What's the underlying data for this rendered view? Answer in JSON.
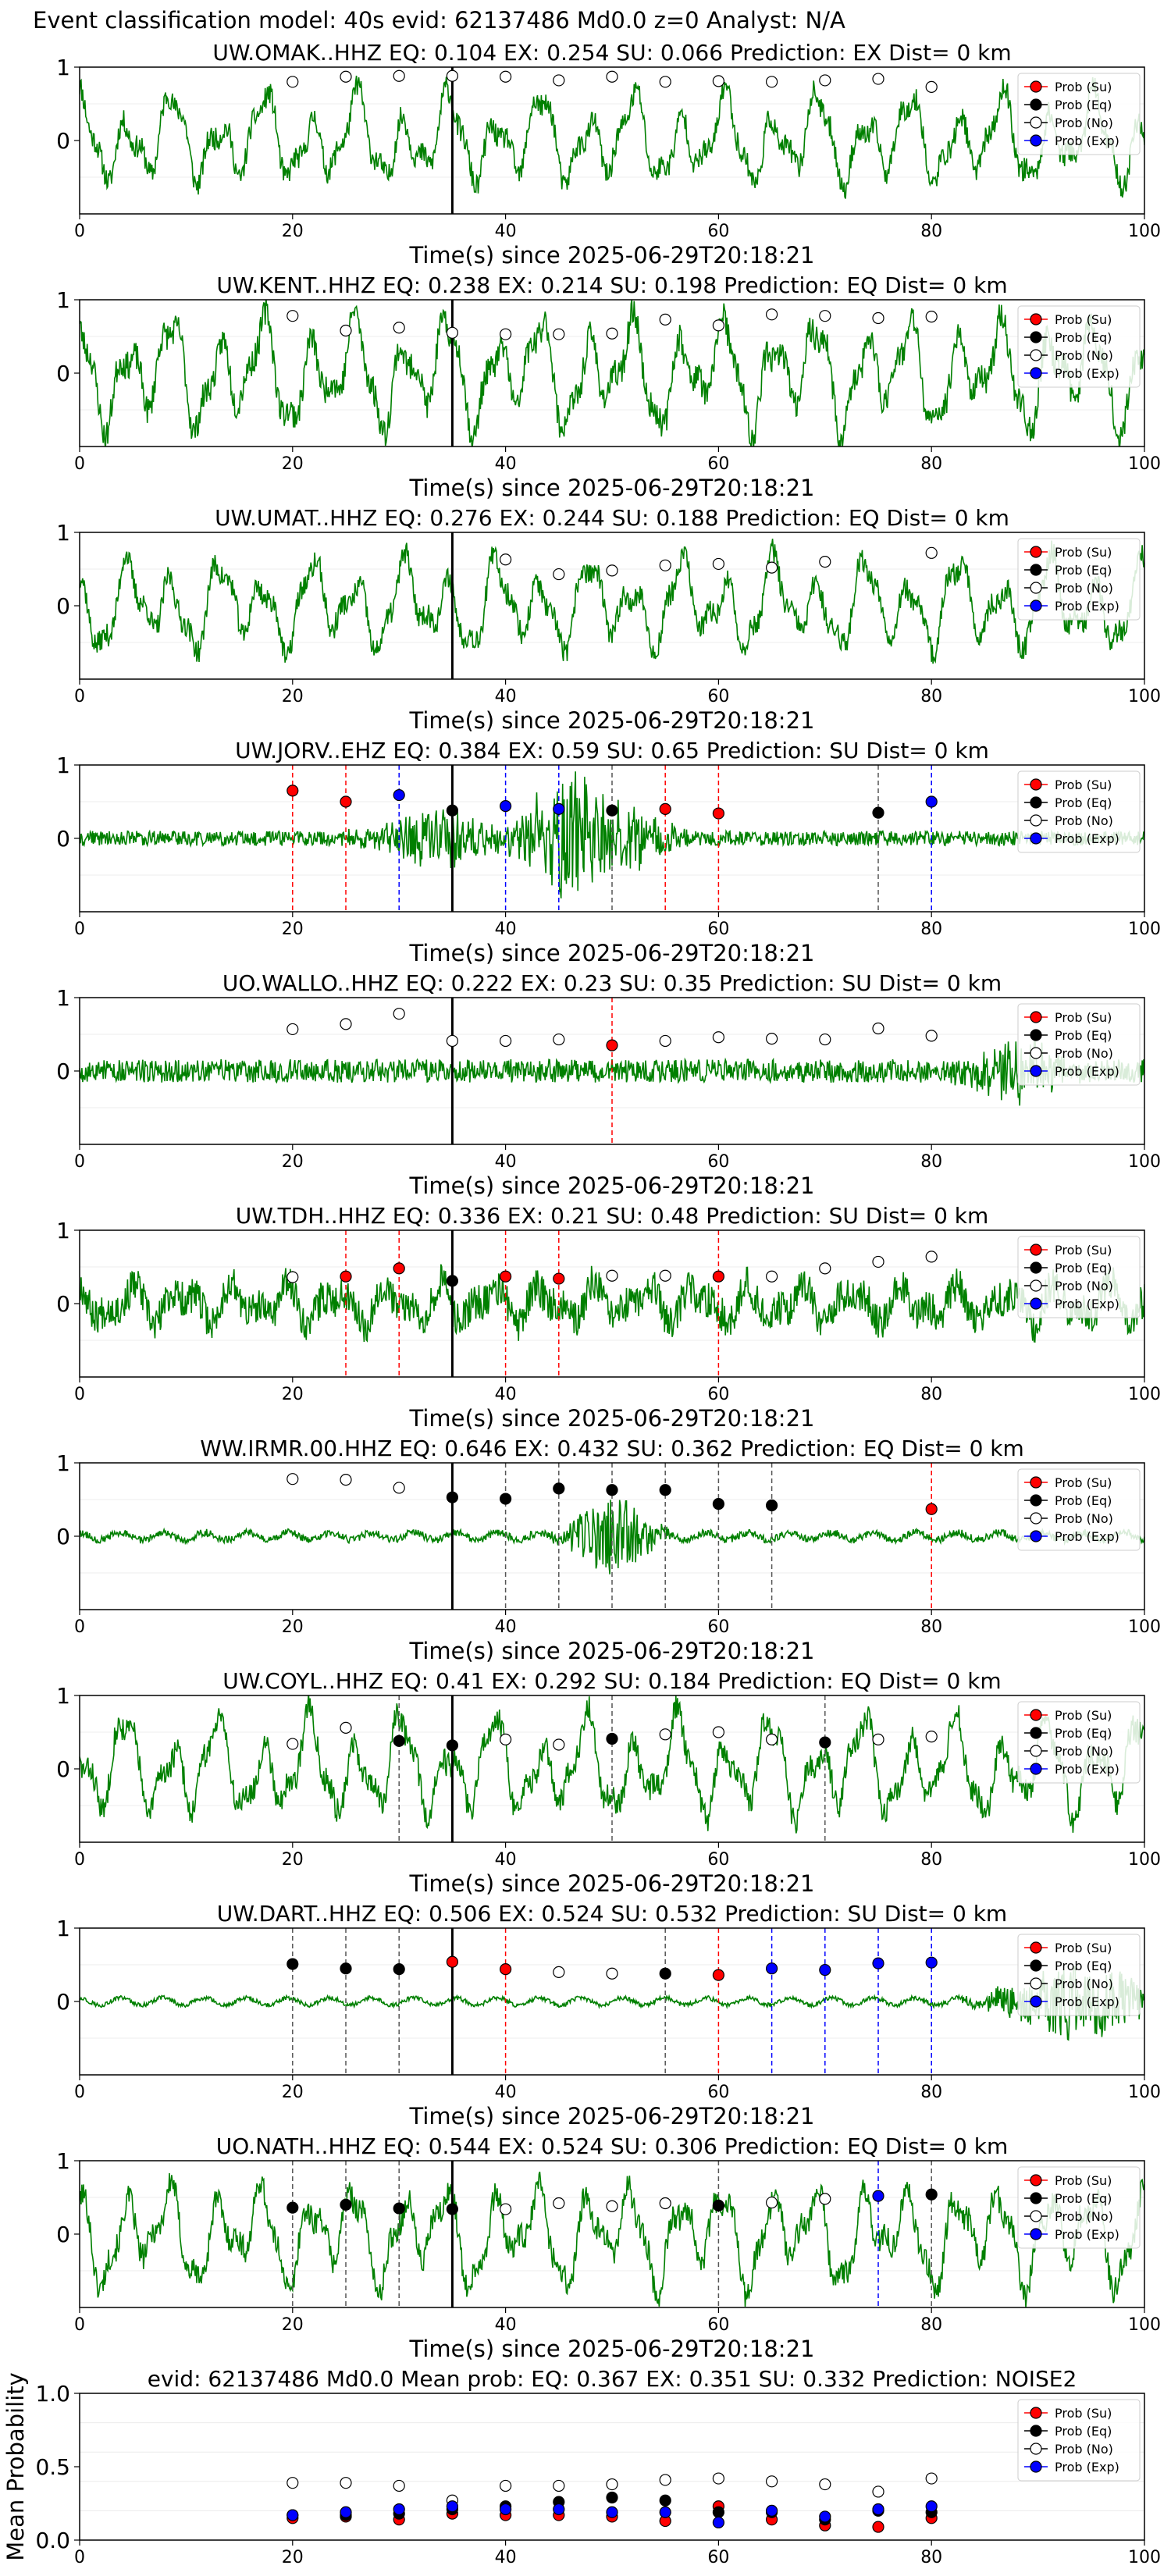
{
  "figure": {
    "suptitle": "Event classification model: 40s evid: 62137486 Md0.0 z=0 Analyst: N/A",
    "xlabel": "Time(s) since 2025-06-29T20:18:21",
    "legend": [
      "Prob (Su)",
      "Prob (Eq)",
      "Prob (No)",
      "Prob (Exp)"
    ]
  },
  "colors": {
    "trace": "#008000",
    "su": "#ff0000",
    "eq": "#000000",
    "no": "#ffffff",
    "exp": "#0000ff",
    "marker": "#000000"
  },
  "chart_data": [
    {
      "type": "line",
      "title": "UW.OMAK..HHZ   EQ: 0.104  EX: 0.254  SU: 0.066   Prediction: EX    Dist= 0 km",
      "xlim": [
        0,
        100
      ],
      "ylim": [
        -1,
        1
      ],
      "xticks": [
        0,
        20,
        40,
        60,
        80,
        100
      ],
      "yticks": [
        0,
        1
      ],
      "xlabel": "Time(s) since 2025-06-29T20:18:21",
      "marker_x": 35,
      "points": [
        {
          "x": 20,
          "y": 0.8,
          "cls": "no"
        },
        {
          "x": 25,
          "y": 0.87,
          "cls": "no"
        },
        {
          "x": 30,
          "y": 0.88,
          "cls": "no"
        },
        {
          "x": 35,
          "y": 0.88,
          "cls": "no"
        },
        {
          "x": 40,
          "y": 0.87,
          "cls": "no"
        },
        {
          "x": 45,
          "y": 0.82,
          "cls": "no"
        },
        {
          "x": 50,
          "y": 0.87,
          "cls": "no"
        },
        {
          "x": 55,
          "y": 0.8,
          "cls": "no"
        },
        {
          "x": 60,
          "y": 0.81,
          "cls": "no"
        },
        {
          "x": 65,
          "y": 0.8,
          "cls": "no"
        },
        {
          "x": 70,
          "y": 0.82,
          "cls": "no"
        },
        {
          "x": 75,
          "y": 0.84,
          "cls": "no"
        },
        {
          "x": 80,
          "y": 0.73,
          "cls": "no"
        }
      ],
      "seed": 11,
      "style": "low",
      "amp": 0.45,
      "bursts": []
    },
    {
      "type": "line",
      "title": "UW.KENT..HHZ   EQ: 0.238  EX: 0.214  SU: 0.198   Prediction: EQ    Dist= 0 km",
      "xlim": [
        0,
        100
      ],
      "ylim": [
        -1,
        1
      ],
      "xticks": [
        0,
        20,
        40,
        60,
        80,
        100
      ],
      "yticks": [
        0,
        1
      ],
      "xlabel": "Time(s) since 2025-06-29T20:18:21",
      "marker_x": 35,
      "points": [
        {
          "x": 20,
          "y": 0.78,
          "cls": "no"
        },
        {
          "x": 25,
          "y": 0.58,
          "cls": "no"
        },
        {
          "x": 30,
          "y": 0.62,
          "cls": "no"
        },
        {
          "x": 35,
          "y": 0.55,
          "cls": "no"
        },
        {
          "x": 40,
          "y": 0.53,
          "cls": "no"
        },
        {
          "x": 45,
          "y": 0.53,
          "cls": "no"
        },
        {
          "x": 50,
          "y": 0.54,
          "cls": "no"
        },
        {
          "x": 55,
          "y": 0.73,
          "cls": "no"
        },
        {
          "x": 60,
          "y": 0.65,
          "cls": "no"
        },
        {
          "x": 65,
          "y": 0.8,
          "cls": "no"
        },
        {
          "x": 70,
          "y": 0.78,
          "cls": "no"
        },
        {
          "x": 75,
          "y": 0.75,
          "cls": "no"
        },
        {
          "x": 80,
          "y": 0.77,
          "cls": "no"
        }
      ],
      "seed": 23,
      "style": "wave",
      "amp": 0.55,
      "bursts": []
    },
    {
      "type": "line",
      "title": "UW.UMAT..HHZ   EQ: 0.276  EX: 0.244  SU: 0.188   Prediction: EQ    Dist= 0 km",
      "xlim": [
        0,
        100
      ],
      "ylim": [
        -1,
        1
      ],
      "xticks": [
        0,
        20,
        40,
        60,
        80,
        100
      ],
      "yticks": [
        0,
        1
      ],
      "xlabel": "Time(s) since 2025-06-29T20:18:21",
      "marker_x": 35,
      "points": [
        {
          "x": 40,
          "y": 0.63,
          "cls": "no"
        },
        {
          "x": 45,
          "y": 0.43,
          "cls": "no"
        },
        {
          "x": 50,
          "y": 0.48,
          "cls": "no"
        },
        {
          "x": 55,
          "y": 0.55,
          "cls": "no"
        },
        {
          "x": 60,
          "y": 0.57,
          "cls": "no"
        },
        {
          "x": 65,
          "y": 0.52,
          "cls": "no"
        },
        {
          "x": 70,
          "y": 0.6,
          "cls": "no"
        },
        {
          "x": 80,
          "y": 0.72,
          "cls": "no"
        }
      ],
      "seed": 37,
      "style": "wave",
      "amp": 0.45,
      "bursts": []
    },
    {
      "type": "line",
      "title": "UW.JORV..EHZ   EQ: 0.384  EX: 0.59  SU: 0.65   Prediction: SU    Dist= 0 km",
      "xlim": [
        0,
        100
      ],
      "ylim": [
        -1,
        1
      ],
      "xticks": [
        0,
        20,
        40,
        60,
        80,
        100
      ],
      "yticks": [
        0,
        1
      ],
      "xlabel": "Time(s) since 2025-06-29T20:18:21",
      "marker_x": 35,
      "points": [
        {
          "x": 20,
          "y": 0.65,
          "cls": "su"
        },
        {
          "x": 25,
          "y": 0.5,
          "cls": "su"
        },
        {
          "x": 30,
          "y": 0.59,
          "cls": "exp"
        },
        {
          "x": 35,
          "y": 0.38,
          "cls": "eq"
        },
        {
          "x": 40,
          "y": 0.44,
          "cls": "exp"
        },
        {
          "x": 45,
          "y": 0.4,
          "cls": "exp"
        },
        {
          "x": 50,
          "y": 0.38,
          "cls": "eq"
        },
        {
          "x": 55,
          "y": 0.4,
          "cls": "su"
        },
        {
          "x": 60,
          "y": 0.34,
          "cls": "su"
        },
        {
          "x": 75,
          "y": 0.35,
          "cls": "eq"
        },
        {
          "x": 80,
          "y": 0.5,
          "cls": "exp"
        }
      ],
      "seed": 41,
      "style": "noise",
      "amp": 0.1,
      "bursts": [
        {
          "c": 34,
          "w": 8,
          "a": 0.35
        },
        {
          "c": 46,
          "w": 6,
          "a": 0.9
        },
        {
          "c": 52,
          "w": 5,
          "a": 0.4
        }
      ]
    },
    {
      "type": "line",
      "title": "UO.WALLO..HHZ   EQ: 0.222  EX: 0.23  SU: 0.35   Prediction: SU    Dist= 0 km",
      "xlim": [
        0,
        100
      ],
      "ylim": [
        -1,
        1
      ],
      "xticks": [
        0,
        20,
        40,
        60,
        80,
        100
      ],
      "yticks": [
        0,
        1
      ],
      "xlabel": "Time(s) since 2025-06-29T20:18:21",
      "marker_x": 35,
      "points": [
        {
          "x": 20,
          "y": 0.57,
          "cls": "no"
        },
        {
          "x": 25,
          "y": 0.64,
          "cls": "no"
        },
        {
          "x": 30,
          "y": 0.78,
          "cls": "no"
        },
        {
          "x": 35,
          "y": 0.41,
          "cls": "no"
        },
        {
          "x": 40,
          "y": 0.41,
          "cls": "no"
        },
        {
          "x": 45,
          "y": 0.43,
          "cls": "no"
        },
        {
          "x": 50,
          "y": 0.35,
          "cls": "su"
        },
        {
          "x": 55,
          "y": 0.41,
          "cls": "no"
        },
        {
          "x": 60,
          "y": 0.46,
          "cls": "no"
        },
        {
          "x": 65,
          "y": 0.44,
          "cls": "no"
        },
        {
          "x": 70,
          "y": 0.43,
          "cls": "no"
        },
        {
          "x": 75,
          "y": 0.58,
          "cls": "no"
        },
        {
          "x": 80,
          "y": 0.48,
          "cls": "no"
        }
      ],
      "seed": 53,
      "style": "noise",
      "amp": 0.16,
      "bursts": [
        {
          "c": 88,
          "w": 6,
          "a": 0.35
        }
      ]
    },
    {
      "type": "line",
      "title": "UW.TDH..HHZ   EQ: 0.336  EX: 0.21  SU: 0.48   Prediction: SU    Dist= 0 km",
      "xlim": [
        0,
        100
      ],
      "ylim": [
        -1,
        1
      ],
      "xticks": [
        0,
        20,
        40,
        60,
        80,
        100
      ],
      "yticks": [
        0,
        1
      ],
      "xlabel": "Time(s) since 2025-06-29T20:18:21",
      "marker_x": 35,
      "points": [
        {
          "x": 20,
          "y": 0.36,
          "cls": "no"
        },
        {
          "x": 25,
          "y": 0.37,
          "cls": "su"
        },
        {
          "x": 30,
          "y": 0.48,
          "cls": "su"
        },
        {
          "x": 35,
          "y": 0.31,
          "cls": "eq"
        },
        {
          "x": 40,
          "y": 0.37,
          "cls": "su"
        },
        {
          "x": 45,
          "y": 0.34,
          "cls": "su"
        },
        {
          "x": 50,
          "y": 0.38,
          "cls": "no"
        },
        {
          "x": 55,
          "y": 0.38,
          "cls": "no"
        },
        {
          "x": 60,
          "y": 0.37,
          "cls": "su"
        },
        {
          "x": 65,
          "y": 0.37,
          "cls": "no"
        },
        {
          "x": 70,
          "y": 0.48,
          "cls": "no"
        },
        {
          "x": 75,
          "y": 0.57,
          "cls": "no"
        },
        {
          "x": 80,
          "y": 0.64,
          "cls": "no"
        }
      ],
      "seed": 67,
      "style": "mixed",
      "amp": 0.3,
      "bursts": []
    },
    {
      "type": "line",
      "title": "WW.IRMR.00.HHZ   EQ: 0.646  EX: 0.432  SU: 0.362   Prediction: EQ    Dist= 0 km",
      "xlim": [
        0,
        100
      ],
      "ylim": [
        -1,
        1
      ],
      "xticks": [
        0,
        20,
        40,
        60,
        80,
        100
      ],
      "yticks": [
        0,
        1
      ],
      "xlabel": "Time(s) since 2025-06-29T20:18:21",
      "marker_x": 35,
      "points": [
        {
          "x": 20,
          "y": 0.78,
          "cls": "no"
        },
        {
          "x": 25,
          "y": 0.77,
          "cls": "no"
        },
        {
          "x": 30,
          "y": 0.66,
          "cls": "no"
        },
        {
          "x": 35,
          "y": 0.53,
          "cls": "eq"
        },
        {
          "x": 40,
          "y": 0.51,
          "cls": "eq"
        },
        {
          "x": 45,
          "y": 0.65,
          "cls": "eq"
        },
        {
          "x": 50,
          "y": 0.63,
          "cls": "eq"
        },
        {
          "x": 55,
          "y": 0.63,
          "cls": "eq"
        },
        {
          "x": 60,
          "y": 0.44,
          "cls": "eq"
        },
        {
          "x": 65,
          "y": 0.42,
          "cls": "eq"
        },
        {
          "x": 80,
          "y": 0.37,
          "cls": "su"
        }
      ],
      "seed": 79,
      "style": "quiet",
      "amp": 0.05,
      "bursts": [
        {
          "c": 50,
          "w": 5,
          "a": 0.55
        }
      ]
    },
    {
      "type": "line",
      "title": "UW.COYL..HHZ   EQ: 0.41  EX: 0.292  SU: 0.184   Prediction: EQ    Dist= 0 km",
      "xlim": [
        0,
        100
      ],
      "ylim": [
        -1,
        1
      ],
      "xticks": [
        0,
        20,
        40,
        60,
        80,
        100
      ],
      "yticks": [
        0,
        1
      ],
      "xlabel": "Time(s) since 2025-06-29T20:18:21",
      "marker_x": 35,
      "points": [
        {
          "x": 20,
          "y": 0.34,
          "cls": "no"
        },
        {
          "x": 25,
          "y": 0.56,
          "cls": "no"
        },
        {
          "x": 30,
          "y": 0.38,
          "cls": "eq"
        },
        {
          "x": 35,
          "y": 0.32,
          "cls": "eq"
        },
        {
          "x": 40,
          "y": 0.4,
          "cls": "no"
        },
        {
          "x": 45,
          "y": 0.33,
          "cls": "no"
        },
        {
          "x": 50,
          "y": 0.41,
          "cls": "eq"
        },
        {
          "x": 55,
          "y": 0.47,
          "cls": "no"
        },
        {
          "x": 60,
          "y": 0.5,
          "cls": "no"
        },
        {
          "x": 65,
          "y": 0.4,
          "cls": "no"
        },
        {
          "x": 70,
          "y": 0.36,
          "cls": "eq"
        },
        {
          "x": 75,
          "y": 0.4,
          "cls": "no"
        },
        {
          "x": 80,
          "y": 0.44,
          "cls": "no"
        }
      ],
      "seed": 83,
      "style": "low",
      "amp": 0.5,
      "bursts": []
    },
    {
      "type": "line",
      "title": "UW.DART..HHZ   EQ: 0.506  EX: 0.524  SU: 0.532   Prediction: SU    Dist= 0 km",
      "xlim": [
        0,
        100
      ],
      "ylim": [
        -1,
        1
      ],
      "xticks": [
        0,
        20,
        40,
        60,
        80,
        100
      ],
      "yticks": [
        0,
        1
      ],
      "xlabel": "Time(s) since 2025-06-29T20:18:21",
      "marker_x": 35,
      "points": [
        {
          "x": 20,
          "y": 0.51,
          "cls": "eq"
        },
        {
          "x": 25,
          "y": 0.45,
          "cls": "eq"
        },
        {
          "x": 30,
          "y": 0.44,
          "cls": "eq"
        },
        {
          "x": 35,
          "y": 0.54,
          "cls": "su"
        },
        {
          "x": 40,
          "y": 0.44,
          "cls": "su"
        },
        {
          "x": 45,
          "y": 0.4,
          "cls": "no"
        },
        {
          "x": 50,
          "y": 0.38,
          "cls": "no"
        },
        {
          "x": 55,
          "y": 0.38,
          "cls": "eq"
        },
        {
          "x": 60,
          "y": 0.36,
          "cls": "su"
        },
        {
          "x": 65,
          "y": 0.45,
          "cls": "exp"
        },
        {
          "x": 70,
          "y": 0.43,
          "cls": "exp"
        },
        {
          "x": 75,
          "y": 0.52,
          "cls": "exp"
        },
        {
          "x": 80,
          "y": 0.53,
          "cls": "exp"
        }
      ],
      "seed": 97,
      "style": "quiet",
      "amp": 0.03,
      "bursts": [
        {
          "c": 94,
          "w": 10,
          "a": 0.5
        }
      ]
    },
    {
      "type": "line",
      "title": "UO.NATH..HHZ   EQ: 0.544  EX: 0.524  SU: 0.306   Prediction: EQ    Dist= 0 km",
      "xlim": [
        0,
        100
      ],
      "ylim": [
        -1,
        1
      ],
      "xticks": [
        0,
        20,
        40,
        60,
        80,
        100
      ],
      "yticks": [
        0,
        1
      ],
      "xlabel": "Time(s) since 2025-06-29T20:18:21",
      "marker_x": 35,
      "points": [
        {
          "x": 20,
          "y": 0.36,
          "cls": "eq"
        },
        {
          "x": 25,
          "y": 0.4,
          "cls": "eq"
        },
        {
          "x": 30,
          "y": 0.35,
          "cls": "eq"
        },
        {
          "x": 35,
          "y": 0.34,
          "cls": "eq"
        },
        {
          "x": 40,
          "y": 0.34,
          "cls": "no"
        },
        {
          "x": 45,
          "y": 0.42,
          "cls": "no"
        },
        {
          "x": 50,
          "y": 0.38,
          "cls": "no"
        },
        {
          "x": 55,
          "y": 0.42,
          "cls": "no"
        },
        {
          "x": 60,
          "y": 0.39,
          "cls": "eq"
        },
        {
          "x": 65,
          "y": 0.43,
          "cls": "no"
        },
        {
          "x": 70,
          "y": 0.48,
          "cls": "no"
        },
        {
          "x": 75,
          "y": 0.52,
          "cls": "exp"
        },
        {
          "x": 80,
          "y": 0.54,
          "cls": "eq"
        }
      ],
      "seed": 101,
      "style": "wave",
      "amp": 0.5,
      "bursts": []
    },
    {
      "type": "scatter",
      "title": "evid: 62137486  Md0.0   Mean prob:   EQ: 0.367  EX: 0.351  SU: 0.332   Prediction: NOISE2",
      "xlim": [
        0,
        100
      ],
      "ylim": [
        0,
        1
      ],
      "xticks": [
        0,
        20,
        40,
        60,
        80,
        100
      ],
      "yticks": [
        0.0,
        0.5,
        1.0
      ],
      "ytick_labels": [
        "0.0",
        "0.5",
        "1.0"
      ],
      "ylabel": "Mean Probability",
      "series": [
        {
          "name": "Prob (Su)",
          "cls": "su",
          "x": [
            20,
            25,
            30,
            35,
            40,
            45,
            50,
            55,
            60,
            65,
            70,
            75,
            80
          ],
          "y": [
            0.15,
            0.16,
            0.14,
            0.18,
            0.17,
            0.17,
            0.16,
            0.13,
            0.23,
            0.14,
            0.1,
            0.09,
            0.15
          ]
        },
        {
          "name": "Prob (Eq)",
          "cls": "eq",
          "x": [
            20,
            25,
            30,
            35,
            40,
            45,
            50,
            55,
            60,
            65,
            70,
            75,
            80
          ],
          "y": [
            0.17,
            0.17,
            0.18,
            0.21,
            0.23,
            0.26,
            0.29,
            0.27,
            0.19,
            0.19,
            0.14,
            0.2,
            0.19
          ]
        },
        {
          "name": "Prob (No)",
          "cls": "no",
          "x": [
            20,
            25,
            30,
            35,
            40,
            45,
            50,
            55,
            60,
            65,
            70,
            75,
            80
          ],
          "y": [
            0.39,
            0.39,
            0.37,
            0.27,
            0.37,
            0.37,
            0.38,
            0.41,
            0.42,
            0.4,
            0.38,
            0.33,
            0.42
          ]
        },
        {
          "name": "Prob (Exp)",
          "cls": "exp",
          "x": [
            20,
            25,
            30,
            35,
            40,
            45,
            50,
            55,
            60,
            65,
            70,
            75,
            80
          ],
          "y": [
            0.17,
            0.19,
            0.21,
            0.23,
            0.21,
            0.21,
            0.19,
            0.19,
            0.12,
            0.2,
            0.16,
            0.21,
            0.23
          ]
        }
      ]
    }
  ]
}
